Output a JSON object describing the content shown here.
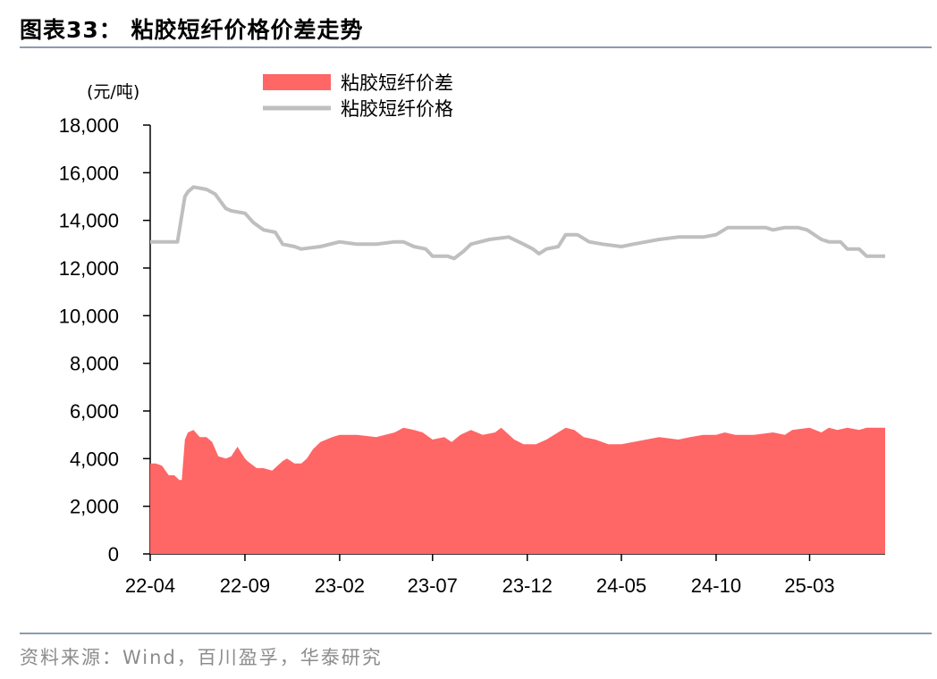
{
  "figure": {
    "title": "图表33：  粘胶短纤价格价差走势",
    "source": "资料来源：Wind，百川盈孚，华泰研究"
  },
  "colors": {
    "spread": "#ff6666",
    "price": "#bfbfbf",
    "rule": "#8a9cb0"
  },
  "chart_data": {
    "type": "area",
    "unit_label": "(元/吨)",
    "ylim": [
      0,
      18000
    ],
    "y_ticks": [
      0,
      2000,
      4000,
      6000,
      8000,
      10000,
      12000,
      14000,
      16000,
      18000
    ],
    "y_tick_labels": [
      "0",
      "2,000",
      "4,000",
      "6,000",
      "8,000",
      "10,000",
      "12,000",
      "14,000",
      "16,000",
      "18,000"
    ],
    "x_tick_labels": [
      "22-04",
      "22-09",
      "23-02",
      "23-07",
      "23-12",
      "24-05",
      "24-10",
      "25-03"
    ],
    "x_range_months": [
      "2022-04",
      "2025-07"
    ],
    "legend_position": "top-center",
    "series": [
      {
        "name": "粘胶短纤价差",
        "kind": "area",
        "x": [
          "2022-04-01",
          "2022-04-10",
          "2022-04-20",
          "2022-05-01",
          "2022-05-10",
          "2022-05-18",
          "2022-05-22",
          "2022-05-27",
          "2022-06-01",
          "2022-06-10",
          "2022-06-20",
          "2022-07-01",
          "2022-07-10",
          "2022-07-20",
          "2022-08-01",
          "2022-08-10",
          "2022-08-20",
          "2022-09-01",
          "2022-09-05",
          "2022-09-10",
          "2022-09-20",
          "2022-10-01",
          "2022-10-15",
          "2022-11-01",
          "2022-11-08",
          "2022-11-20",
          "2022-12-01",
          "2022-12-10",
          "2022-12-20",
          "2023-01-01",
          "2023-01-20",
          "2023-02-01",
          "2023-03-01",
          "2023-04-01",
          "2023-05-01",
          "2023-05-15",
          "2023-06-01",
          "2023-06-15",
          "2023-07-01",
          "2023-07-20",
          "2023-08-01",
          "2023-08-15",
          "2023-09-01",
          "2023-09-20",
          "2023-10-10",
          "2023-10-20",
          "2023-11-10",
          "2023-11-25",
          "2023-12-15",
          "2024-01-01",
          "2024-02-01",
          "2024-02-15",
          "2024-03-01",
          "2024-03-20",
          "2024-04-10",
          "2024-05-01",
          "2024-05-20",
          "2024-06-10",
          "2024-07-01",
          "2024-08-01",
          "2024-08-20",
          "2024-09-10",
          "2024-10-01",
          "2024-10-15",
          "2024-11-01",
          "2024-12-01",
          "2025-01-01",
          "2025-01-20",
          "2025-02-01",
          "2025-03-01",
          "2025-03-20",
          "2025-04-01",
          "2025-04-15",
          "2025-05-01",
          "2025-05-20",
          "2025-06-01",
          "2025-06-10",
          "2025-07-01"
        ],
        "y": [
          3800,
          3800,
          3700,
          3300,
          3300,
          3100,
          3100,
          4800,
          5100,
          5200,
          4900,
          4900,
          4700,
          4100,
          4000,
          4100,
          4500,
          4000,
          3900,
          3800,
          3600,
          3600,
          3500,
          3900,
          4000,
          3800,
          3800,
          4000,
          4400,
          4700,
          4900,
          5000,
          5000,
          4900,
          5100,
          5300,
          5200,
          5100,
          4800,
          4900,
          4700,
          5000,
          5200,
          5000,
          5100,
          5300,
          4800,
          4600,
          4600,
          4800,
          5300,
          5200,
          4900,
          4800,
          4600,
          4600,
          4700,
          4800,
          4900,
          4800,
          4900,
          5000,
          5000,
          5100,
          5000,
          5000,
          5100,
          5000,
          5200,
          5300,
          5100,
          5300,
          5200,
          5300,
          5200,
          5300,
          5300,
          5300
        ]
      },
      {
        "name": "粘胶短纤价格",
        "kind": "line",
        "x": [
          "2022-04-01",
          "2022-05-15",
          "2022-05-27",
          "2022-06-01",
          "2022-06-10",
          "2022-07-01",
          "2022-07-15",
          "2022-08-01",
          "2022-08-10",
          "2022-09-01",
          "2022-09-15",
          "2022-10-01",
          "2022-10-20",
          "2022-11-01",
          "2022-11-20",
          "2022-12-01",
          "2023-01-01",
          "2023-02-01",
          "2023-03-01",
          "2023-04-01",
          "2023-05-01",
          "2023-05-15",
          "2023-06-01",
          "2023-06-20",
          "2023-07-01",
          "2023-07-25",
          "2023-08-05",
          "2023-08-20",
          "2023-09-01",
          "2023-10-01",
          "2023-11-01",
          "2023-11-25",
          "2023-12-10",
          "2023-12-20",
          "2024-01-01",
          "2024-01-20",
          "2024-02-01",
          "2024-02-20",
          "2024-03-10",
          "2024-04-01",
          "2024-05-01",
          "2024-05-20",
          "2024-06-10",
          "2024-07-01",
          "2024-08-01",
          "2024-09-10",
          "2024-10-01",
          "2024-10-20",
          "2024-11-20",
          "2024-12-20",
          "2025-01-01",
          "2025-01-20",
          "2025-02-10",
          "2025-02-25",
          "2025-03-20",
          "2025-04-01",
          "2025-04-20",
          "2025-05-01",
          "2025-05-20",
          "2025-06-01",
          "2025-07-01"
        ],
        "y": [
          13100,
          13100,
          15000,
          15200,
          15400,
          15300,
          15100,
          14500,
          14400,
          14300,
          13900,
          13600,
          13500,
          13000,
          12900,
          12800,
          12900,
          13100,
          13000,
          13000,
          13100,
          13100,
          12900,
          12800,
          12500,
          12500,
          12400,
          12700,
          13000,
          13200,
          13300,
          13000,
          12800,
          12600,
          12800,
          12900,
          13400,
          13400,
          13100,
          13000,
          12900,
          13000,
          13100,
          13200,
          13300,
          13300,
          13400,
          13700,
          13700,
          13700,
          13600,
          13700,
          13700,
          13600,
          13200,
          13100,
          13100,
          12800,
          12800,
          12500,
          12500
        ]
      }
    ]
  }
}
